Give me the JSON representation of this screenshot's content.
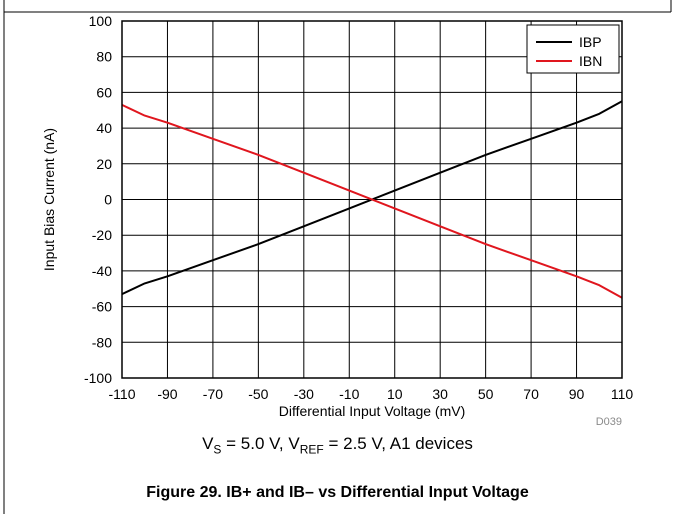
{
  "chart_data": {
    "type": "line",
    "xlabel": "Differential Input Voltage (mV)",
    "ylabel": "Input Bias Current (nA)",
    "xlim": [
      -110,
      110
    ],
    "ylim": [
      -100,
      100
    ],
    "x_ticks": [
      -110,
      -90,
      -70,
      -50,
      -30,
      -10,
      10,
      30,
      50,
      70,
      90,
      110
    ],
    "y_ticks": [
      -100,
      -80,
      -60,
      -40,
      -20,
      0,
      20,
      40,
      60,
      80,
      100
    ],
    "grid": true,
    "legend": "top-right",
    "series": [
      {
        "name": "IBP",
        "color": "#000000",
        "x": [
          -110,
          -100,
          -90,
          -70,
          -50,
          -30,
          -10,
          10,
          30,
          50,
          70,
          90,
          100,
          110
        ],
        "y": [
          -53,
          -47,
          -43,
          -34,
          -25,
          -15,
          -5,
          5,
          15,
          25,
          34,
          43,
          48,
          55
        ]
      },
      {
        "name": "IBN",
        "color": "#e0161e",
        "x": [
          -110,
          -100,
          -90,
          -70,
          -50,
          -30,
          -10,
          10,
          30,
          50,
          70,
          90,
          100,
          110
        ],
        "y": [
          53,
          47,
          43,
          34,
          25,
          15,
          5,
          -5,
          -15,
          -25,
          -34,
          -43,
          -48,
          -55
        ]
      }
    ],
    "code": "D039"
  },
  "condition": {
    "v_s_symbol": "V",
    "v_s_sub": "S",
    "v_s_value": " = 5.0 V, ",
    "v_ref_symbol": "V",
    "v_ref_sub": "REF",
    "v_ref_value": " = 2.5 V, A1 devices"
  },
  "caption": "Figure 29. IB+ and IB– vs Differential Input Voltage"
}
